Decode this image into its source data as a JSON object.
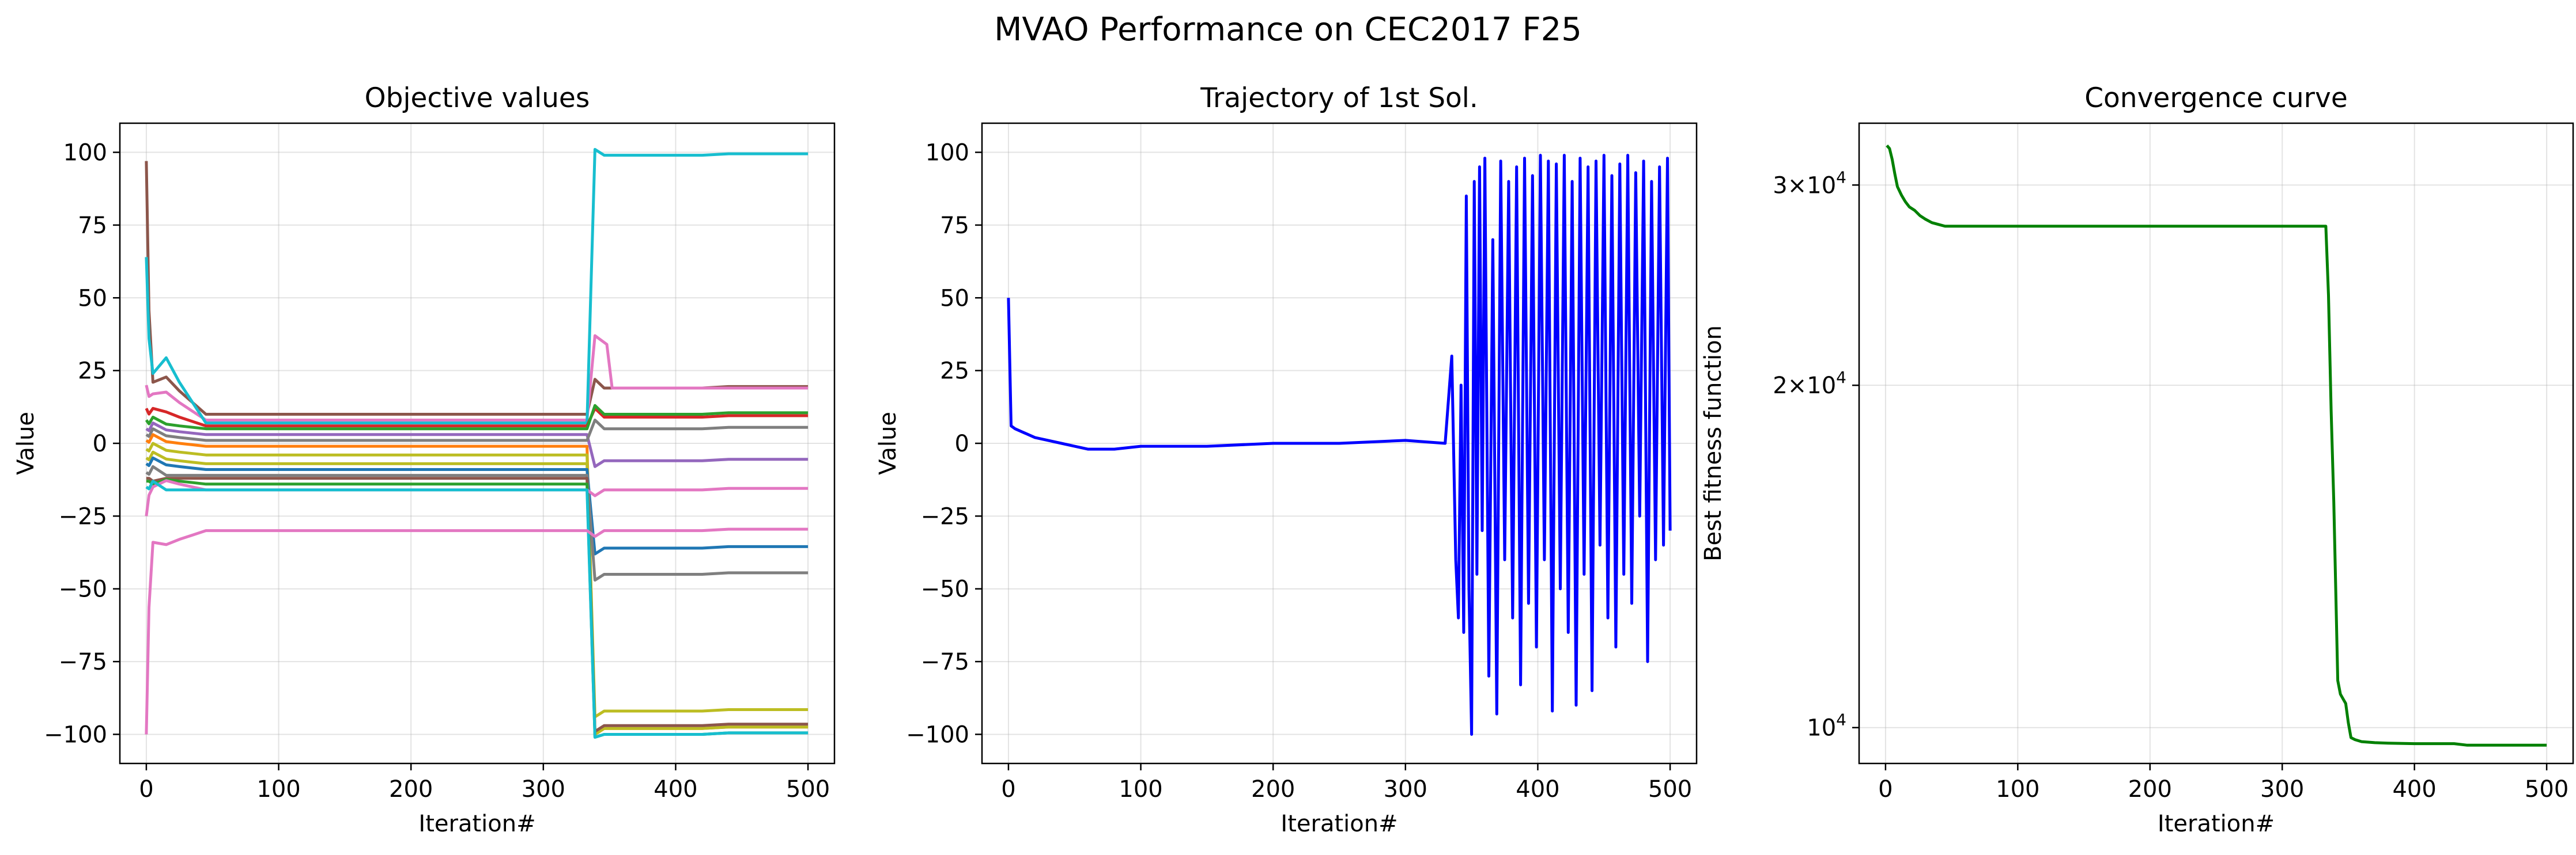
{
  "suptitle": "MVAO Performance on CEC2017 F25",
  "chart_data": [
    {
      "type": "line",
      "title": "Objective values",
      "xlabel": "Iteration#",
      "ylabel": "Value",
      "xlim": [
        -20,
        520
      ],
      "ylim": [
        -110,
        110
      ],
      "xticks": [
        0,
        100,
        200,
        300,
        400,
        500
      ],
      "xtick_labels": [
        "0",
        "100",
        "200",
        "300",
        "400",
        "500"
      ],
      "yticks": [
        100,
        75,
        50,
        25,
        0,
        -25,
        -50,
        -75,
        -100
      ],
      "ytick_labels": [
        "100",
        "75",
        "50",
        "25",
        "0",
        "−25",
        "−50",
        "−75",
        "−100"
      ],
      "grid": true,
      "series": [
        {
          "color": "#8c564b",
          "start": 97,
          "early": 18,
          "plateau": 10,
          "final": 19
        },
        {
          "color": "#e377c2",
          "start": 20,
          "early": 14,
          "plateau": 8,
          "final": 34,
          "final2": 19
        },
        {
          "color": "#17becf",
          "start": 64,
          "early": 21,
          "plateau": 7,
          "final": 99
        },
        {
          "color": "#d62728",
          "start": 12,
          "early": 9,
          "plateau": 6,
          "final": 9
        },
        {
          "color": "#2ca02c",
          "start": 8,
          "early": 6,
          "plateau": 5,
          "final": 10
        },
        {
          "color": "#9467bd",
          "start": 5,
          "early": 4,
          "plateau": 3,
          "final": -6
        },
        {
          "color": "#7f7f7f",
          "start": 3,
          "early": 2,
          "plateau": 1,
          "final": 5
        },
        {
          "color": "#ff7f0e",
          "start": 1,
          "early": 0,
          "plateau": -1,
          "final": -98
        },
        {
          "color": "#bcbd22",
          "start": -2,
          "early": -3,
          "plateau": -4,
          "final": -92
        },
        {
          "color": "#bcbd22",
          "start": -5,
          "early": -6,
          "plateau": -7,
          "final": -98
        },
        {
          "color": "#1f77b4",
          "start": -7,
          "early": -8,
          "plateau": -9,
          "final": -36
        },
        {
          "color": "#7f7f7f",
          "start": -10,
          "early": -11,
          "plateau": -11,
          "final": -45
        },
        {
          "color": "#8c564b",
          "start": -12,
          "early": -12,
          "plateau": -12,
          "final": -97
        },
        {
          "color": "#2ca02c",
          "start": -13,
          "early": -13,
          "plateau": -14,
          "final": -100
        },
        {
          "color": "#e377c2",
          "start": -25,
          "early": -14,
          "plateau": -16,
          "final": -16
        },
        {
          "color": "#17becf",
          "start": -15,
          "early": -16,
          "plateau": -16,
          "final": -100
        },
        {
          "color": "#e377c2",
          "start": -100,
          "early": -33,
          "plateau": -30,
          "final": -30
        }
      ]
    },
    {
      "type": "line",
      "title": "Trajectory of 1st Sol.",
      "xlabel": "Iteration#",
      "ylabel": "Value",
      "xlim": [
        -20,
        520
      ],
      "ylim": [
        -110,
        110
      ],
      "xticks": [
        0,
        100,
        200,
        300,
        400,
        500
      ],
      "xtick_labels": [
        "0",
        "100",
        "200",
        "300",
        "400",
        "500"
      ],
      "yticks": [
        100,
        75,
        50,
        25,
        0,
        -25,
        -50,
        -75,
        -100
      ],
      "ytick_labels": [
        "100",
        "75",
        "50",
        "25",
        "0",
        "−25",
        "−50",
        "−75",
        "−100"
      ],
      "grid": true,
      "color": "#0000ff",
      "x": [
        0,
        2,
        5,
        10,
        20,
        30,
        40,
        50,
        60,
        80,
        100,
        150,
        200,
        250,
        300,
        330,
        335,
        338,
        340,
        342,
        344,
        346,
        348,
        350,
        352,
        354,
        356,
        358,
        360,
        363,
        366,
        369,
        372,
        375,
        378,
        381,
        384,
        387,
        390,
        393,
        396,
        399,
        402,
        405,
        408,
        411,
        414,
        417,
        420,
        423,
        426,
        429,
        432,
        435,
        438,
        441,
        444,
        447,
        450,
        453,
        456,
        459,
        462,
        465,
        468,
        471,
        474,
        477,
        480,
        483,
        486,
        489,
        492,
        495,
        498,
        500
      ],
      "y": [
        50,
        6,
        5,
        4,
        2,
        1,
        0,
        -1,
        -2,
        -2,
        -1,
        -1,
        0,
        0,
        1,
        0,
        30,
        -40,
        -60,
        20,
        -65,
        85,
        -50,
        -100,
        90,
        -45,
        95,
        -30,
        98,
        -80,
        70,
        -93,
        97,
        -40,
        90,
        -60,
        95,
        -83,
        98,
        -55,
        92,
        -70,
        99,
        -40,
        97,
        -92,
        96,
        -50,
        99,
        -65,
        90,
        -90,
        98,
        -45,
        95,
        -85,
        97,
        -35,
        99,
        -60,
        92,
        -70,
        96,
        -45,
        99,
        -55,
        93,
        -25,
        97,
        -75,
        90,
        -40,
        95,
        -35,
        98,
        -30
      ]
    },
    {
      "type": "line",
      "title": "Convergence curve",
      "xlabel": "Iteration#",
      "ylabel": "Best fitness function",
      "xlim": [
        -20,
        520
      ],
      "ylim": [
        9300,
        34000
      ],
      "yscale": "log",
      "xticks": [
        0,
        100,
        200,
        300,
        400,
        500
      ],
      "xtick_labels": [
        "0",
        "100",
        "200",
        "300",
        "400",
        "500"
      ],
      "yticks": [
        30000,
        20000,
        10000
      ],
      "ytick_labels": [
        [
          "3",
          "×",
          "10",
          "4"
        ],
        [
          "2",
          "×",
          "10",
          "4"
        ],
        [
          "10",
          "",
          "",
          "4"
        ]
      ],
      "grid": true,
      "color": "#008000",
      "x": [
        1,
        3,
        5,
        7,
        9,
        12,
        15,
        18,
        22,
        26,
        30,
        35,
        40,
        45,
        60,
        100,
        200,
        300,
        333,
        335,
        337,
        339,
        340,
        342,
        344,
        346,
        348,
        350,
        352,
        355,
        360,
        370,
        380,
        400,
        430,
        440,
        470,
        500
      ],
      "y": [
        32500,
        32300,
        31600,
        30700,
        29900,
        29400,
        29000,
        28700,
        28500,
        28200,
        28000,
        27800,
        27700,
        27600,
        27600,
        27600,
        27600,
        27600,
        27600,
        24000,
        19000,
        15800,
        14000,
        11000,
        10700,
        10600,
        10500,
        10100,
        9800,
        9760,
        9720,
        9700,
        9690,
        9680,
        9680,
        9650,
        9650,
        9650
      ]
    }
  ]
}
